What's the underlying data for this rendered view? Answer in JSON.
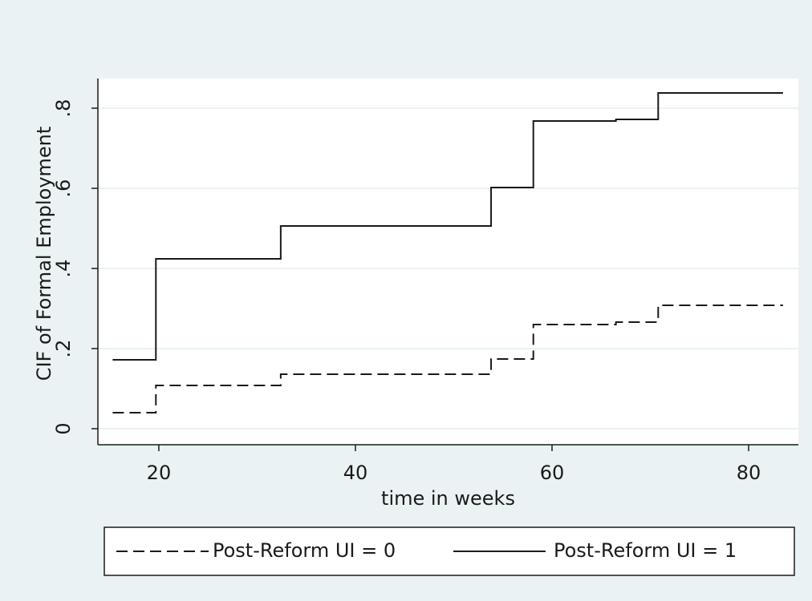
{
  "chart_data": {
    "type": "step",
    "x_label": "time in weeks",
    "y_label": "CIF of Formal Employment",
    "x": [
      15.3,
      19.7,
      32.4,
      53.8,
      58.1,
      66.5,
      70.8,
      83.5
    ],
    "series": [
      {
        "name": "Post-Reform UI = 0",
        "color": "#1a1a1a",
        "dash": "dashed",
        "values": [
          0.04,
          0.108,
          0.136,
          0.174,
          0.26,
          0.266,
          0.308,
          0.308
        ]
      },
      {
        "name": "Post-Reform UI = 1",
        "color": "#1a1a1a",
        "dash": "solid",
        "values": [
          0.172,
          0.424,
          0.506,
          0.602,
          0.768,
          0.772,
          0.838,
          0.838
        ]
      }
    ],
    "xlim": [
      13.8,
      85.06
    ],
    "ylim": [
      -0.04,
      0.874
    ],
    "xticks": [
      20,
      40,
      60,
      80
    ],
    "yticks": [
      {
        "value": 0,
        "label": "0"
      },
      {
        "value": 0.2,
        "label": ".2"
      },
      {
        "value": 0.4,
        "label": ".4"
      },
      {
        "value": 0.6,
        "label": ".6"
      },
      {
        "value": 0.8,
        "label": ".8"
      }
    ],
    "grid": true,
    "legend": "bottom"
  }
}
